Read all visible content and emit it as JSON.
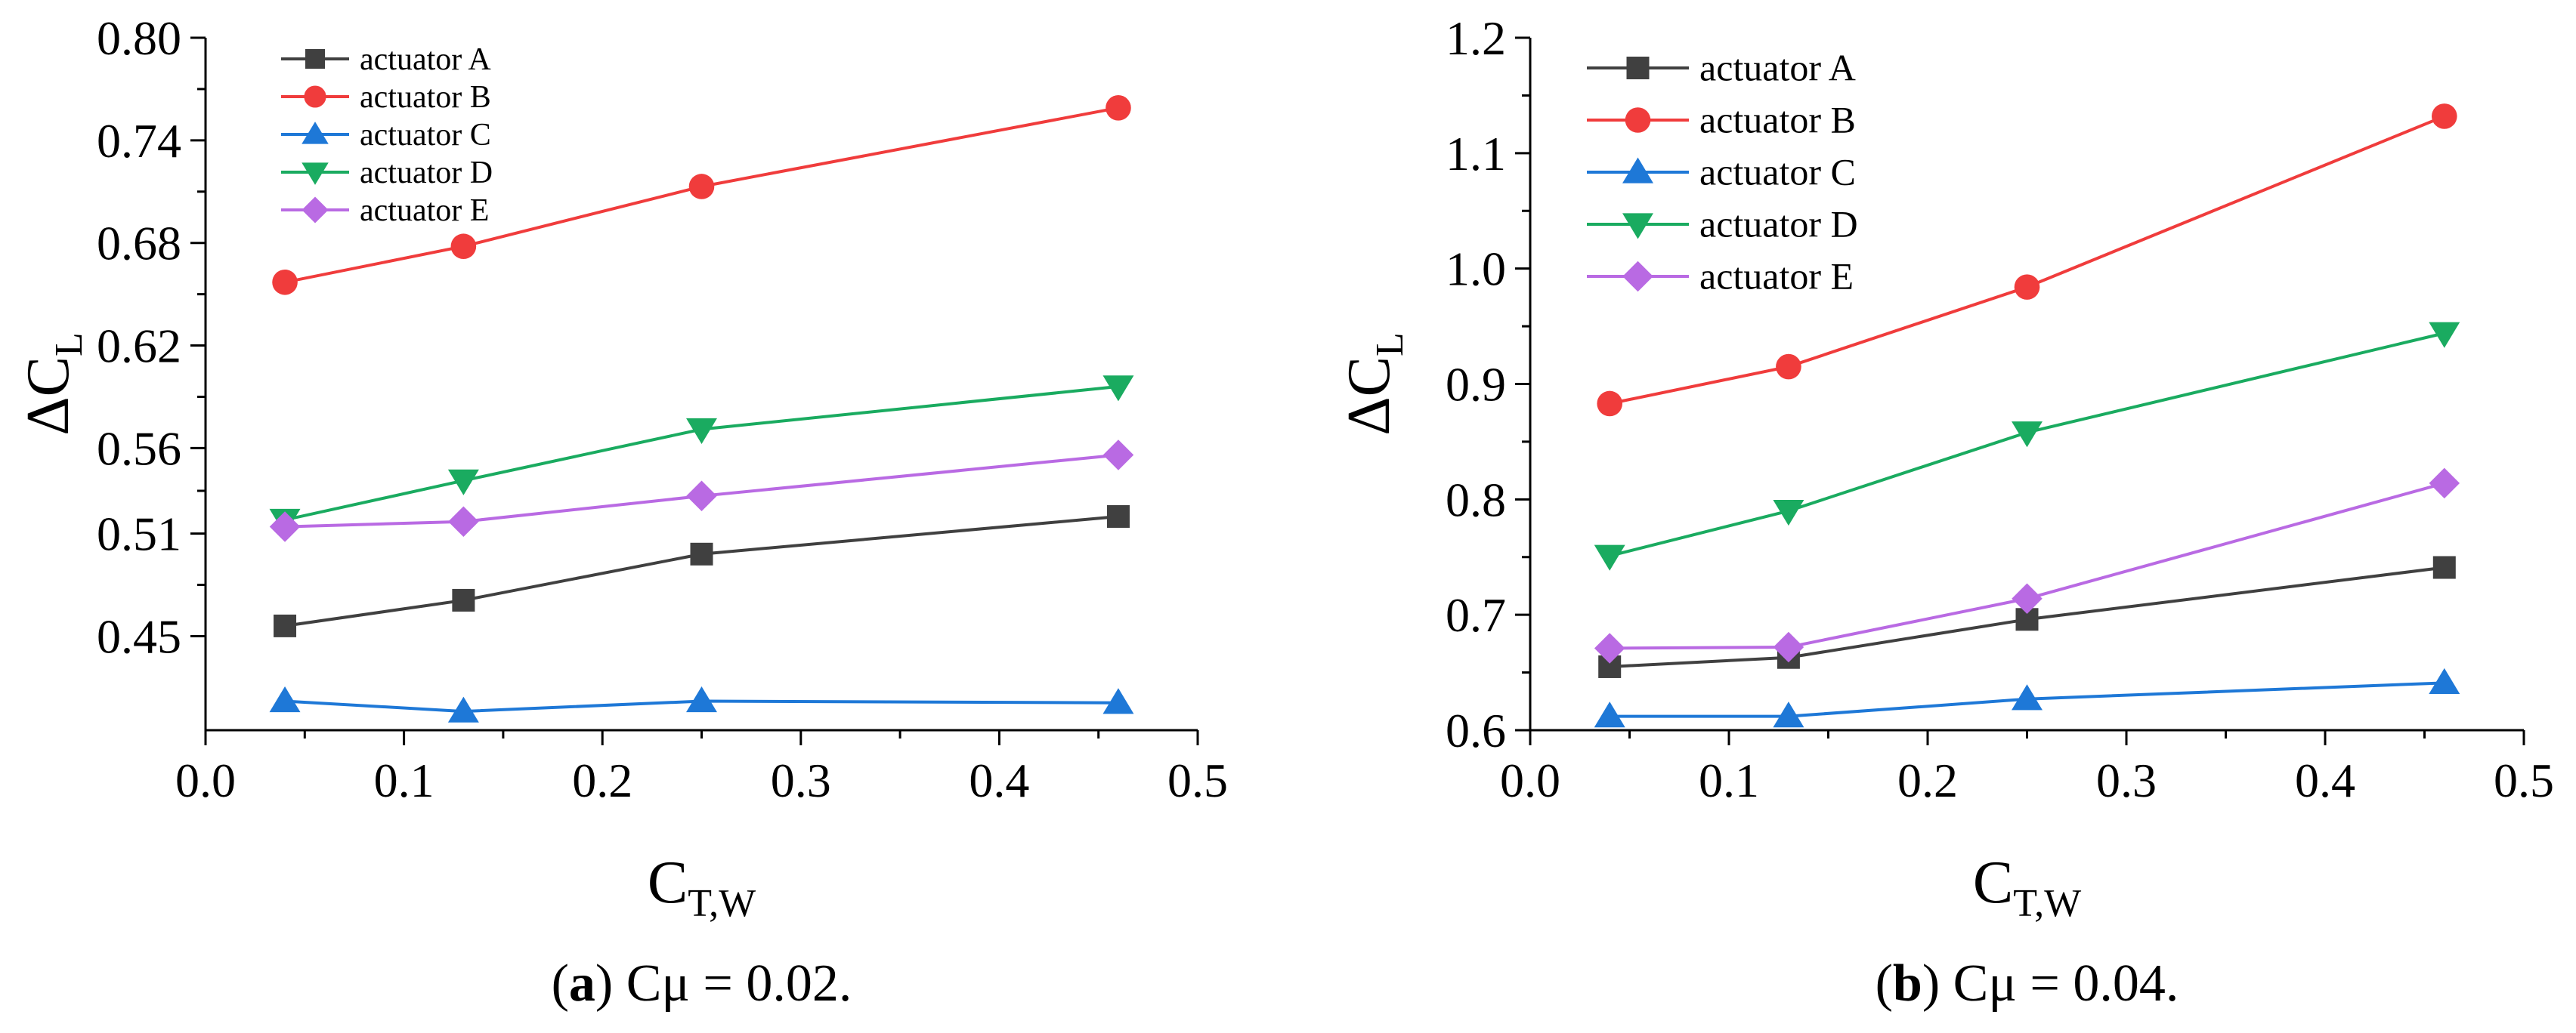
{
  "chart_data": [
    {
      "type": "line",
      "panel": "a",
      "caption_letter": "a",
      "caption_text": " Cμ = 0.02.",
      "xlabel_base": "C",
      "xlabel_sub": "T,W",
      "ylabel_base": "ΔC",
      "ylabel_sub": "L",
      "xlim": [
        0.0,
        0.5
      ],
      "ylim": [
        0.395,
        0.8
      ],
      "x_ticks": [
        0.0,
        0.1,
        0.2,
        0.3,
        0.4,
        0.5
      ],
      "x_tick_labels": [
        "0.0",
        "0.1",
        "0.2",
        "0.3",
        "0.4",
        "0.5"
      ],
      "y_ticks": [
        0.45,
        0.51,
        0.56,
        0.62,
        0.68,
        0.74,
        0.8
      ],
      "y_tick_labels": [
        "0.45",
        "0.51",
        "0.56",
        "0.62",
        "0.68",
        "0.74",
        "0.80"
      ],
      "x": [
        0.04,
        0.13,
        0.25,
        0.46
      ],
      "series": [
        {
          "name": "actuator A",
          "color": "#404040",
          "marker": "square",
          "values": [
            0.456,
            0.471,
            0.498,
            0.52
          ]
        },
        {
          "name": "actuator B",
          "color": "#f03c3c",
          "marker": "circle",
          "values": [
            0.657,
            0.678,
            0.713,
            0.759
          ]
        },
        {
          "name": "actuator C",
          "color": "#1e78d7",
          "marker": "triangle-up",
          "values": [
            0.412,
            0.406,
            0.412,
            0.411
          ]
        },
        {
          "name": "actuator D",
          "color": "#1aab60",
          "marker": "triangle-down",
          "values": [
            0.518,
            0.541,
            0.571,
            0.596
          ]
        },
        {
          "name": "actuator E",
          "color": "#b96ae3",
          "marker": "diamond",
          "values": [
            0.514,
            0.517,
            0.532,
            0.556
          ]
        }
      ]
    },
    {
      "type": "line",
      "panel": "b",
      "caption_letter": "b",
      "caption_text": " Cμ = 0.04.",
      "xlabel_base": "C",
      "xlabel_sub": "T,W",
      "ylabel_base": "ΔC",
      "ylabel_sub": "L",
      "xlim": [
        0.0,
        0.5
      ],
      "ylim": [
        0.6,
        1.2
      ],
      "x_ticks": [
        0.0,
        0.1,
        0.2,
        0.3,
        0.4,
        0.5
      ],
      "x_tick_labels": [
        "0.0",
        "0.1",
        "0.2",
        "0.3",
        "0.4",
        "0.5"
      ],
      "y_ticks": [
        0.6,
        0.7,
        0.8,
        0.9,
        1.0,
        1.1,
        1.2
      ],
      "y_tick_labels": [
        "0.6",
        "0.7",
        "0.8",
        "0.9",
        "1.0",
        "1.1",
        "1.2"
      ],
      "x": [
        0.04,
        0.13,
        0.25,
        0.46
      ],
      "series": [
        {
          "name": "actuator A",
          "color": "#404040",
          "marker": "square",
          "values": [
            0.655,
            0.663,
            0.696,
            0.741
          ]
        },
        {
          "name": "actuator B",
          "color": "#f03c3c",
          "marker": "circle",
          "values": [
            0.883,
            0.915,
            0.984,
            1.132
          ]
        },
        {
          "name": "actuator C",
          "color": "#1e78d7",
          "marker": "triangle-up",
          "values": [
            0.612,
            0.612,
            0.627,
            0.641
          ]
        },
        {
          "name": "actuator D",
          "color": "#1aab60",
          "marker": "triangle-down",
          "values": [
            0.751,
            0.79,
            0.858,
            0.944
          ]
        },
        {
          "name": "actuator E",
          "color": "#b96ae3",
          "marker": "diamond",
          "values": [
            0.671,
            0.672,
            0.714,
            0.814
          ]
        }
      ]
    }
  ]
}
